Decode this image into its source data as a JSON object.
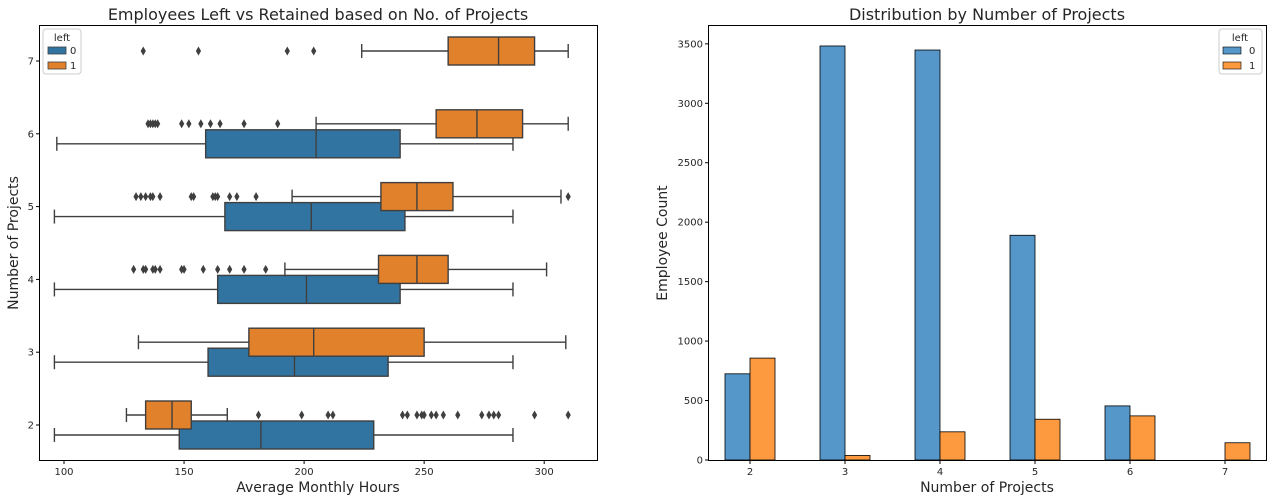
{
  "chart_data": [
    {
      "type": "boxplot",
      "orientation": "horizontal",
      "title": "Employees Left vs Retained based on No. of Projects",
      "xlabel": "Average Monthly Hours",
      "ylabel": "Number of Projects",
      "xlim": [
        90,
        322
      ],
      "xticks": [
        100,
        150,
        200,
        250,
        300
      ],
      "yticks": [
        7,
        6,
        5,
        4,
        3,
        2
      ],
      "legend": {
        "title": "left",
        "placement": "top-left",
        "entries": [
          "0",
          "1"
        ]
      },
      "colors": {
        "0": "#3274a1",
        "1": "#e1812c"
      },
      "series": [
        {
          "name": "0",
          "boxes": [
            {
              "y": 6,
              "whislo": 97,
              "q1": 159,
              "med": 205,
              "q3": 240,
              "whishi": 287,
              "fliers": []
            },
            {
              "y": 5,
              "whislo": 96,
              "q1": 167,
              "med": 203,
              "q3": 242,
              "whishi": 287,
              "fliers": []
            },
            {
              "y": 4,
              "whislo": 96,
              "q1": 164,
              "med": 201,
              "q3": 240,
              "whishi": 287,
              "fliers": []
            },
            {
              "y": 3,
              "whislo": 96,
              "q1": 160,
              "med": 196,
              "q3": 235,
              "whishi": 287,
              "fliers": []
            },
            {
              "y": 2,
              "whislo": 96,
              "q1": 148,
              "med": 182,
              "q3": 229,
              "whishi": 287,
              "fliers": []
            }
          ]
        },
        {
          "name": "1",
          "boxes": [
            {
              "y": 7,
              "whislo": 224,
              "q1": 260,
              "med": 281,
              "q3": 296,
              "whishi": 310,
              "fliers": [
                133,
                156,
                193,
                204
              ]
            },
            {
              "y": 6,
              "whislo": 205,
              "q1": 255,
              "med": 272,
              "q3": 291,
              "whishi": 310,
              "fliers": [
                135,
                136,
                137,
                138,
                139,
                149,
                152,
                157,
                161,
                165,
                175,
                189
              ]
            },
            {
              "y": 5,
              "whislo": 195,
              "q1": 232,
              "med": 247,
              "q3": 262,
              "whishi": 307,
              "fliers": [
                130,
                132,
                134,
                136,
                137,
                140,
                153,
                154,
                162,
                163,
                164,
                169,
                172,
                180,
                310
              ]
            },
            {
              "y": 4,
              "whislo": 192,
              "q1": 231,
              "med": 247,
              "q3": 260,
              "whishi": 301,
              "fliers": [
                129,
                133,
                134,
                137,
                138,
                140,
                149,
                150,
                158,
                164,
                169,
                175,
                184
              ]
            },
            {
              "y": 3,
              "whislo": 131,
              "q1": 177,
              "med": 204,
              "q3": 250,
              "whishi": 309,
              "fliers": []
            },
            {
              "y": 2,
              "whislo": 126,
              "q1": 134,
              "med": 145,
              "q3": 153,
              "whishi": 168,
              "fliers": [
                181,
                199,
                210,
                212,
                241,
                243,
                247,
                249,
                250,
                253,
                255,
                258,
                264,
                274,
                277,
                279,
                281,
                296,
                310
              ]
            }
          ]
        }
      ]
    },
    {
      "type": "bar",
      "title": "Distribution by Number of Projects",
      "xlabel": "Number of Projects",
      "ylabel": "Employee Count",
      "categories": [
        "2",
        "3",
        "4",
        "5",
        "6",
        "7"
      ],
      "ylim": [
        0,
        3650
      ],
      "yticks": [
        0,
        500,
        1000,
        1500,
        2000,
        2500,
        3000,
        3500
      ],
      "legend": {
        "title": "left",
        "placement": "top-right",
        "entries": [
          "0",
          "1"
        ]
      },
      "colors": {
        "0": "#5597c9",
        "1": "#fd9a40"
      },
      "series": [
        {
          "name": "0",
          "values": [
            725,
            3482,
            3448,
            1890,
            455,
            0
          ]
        },
        {
          "name": "1",
          "values": [
            857,
            38,
            237,
            343,
            371,
            145
          ]
        }
      ]
    }
  ]
}
